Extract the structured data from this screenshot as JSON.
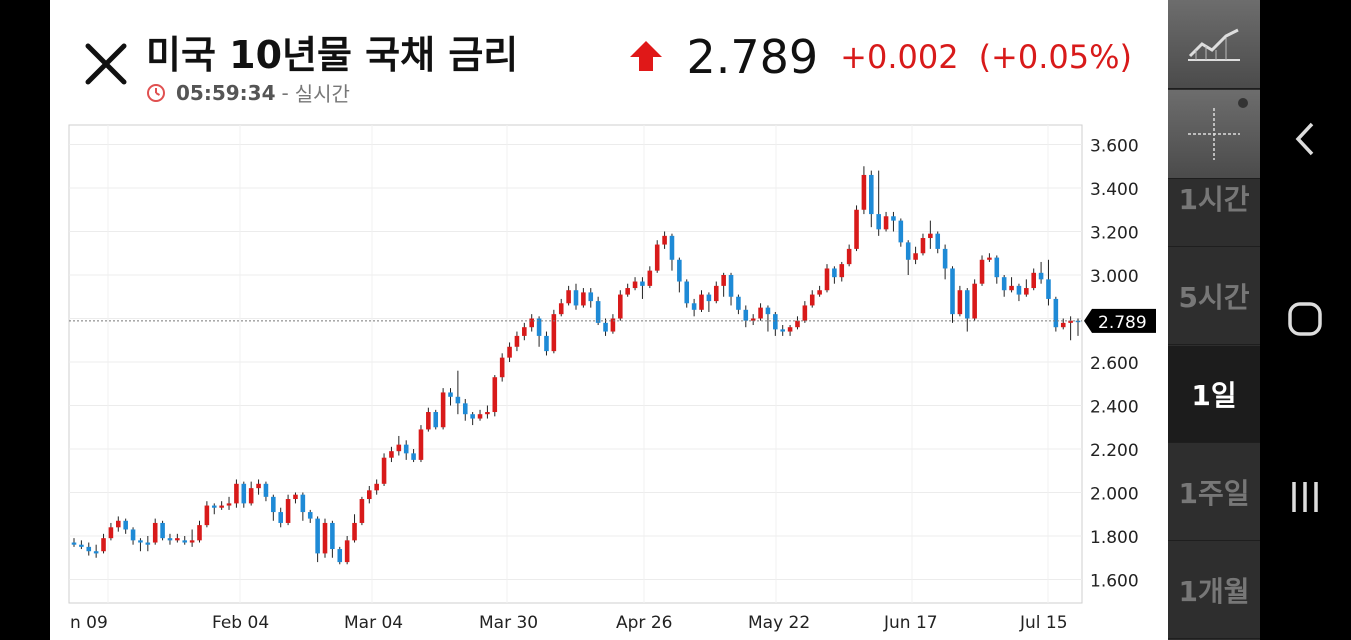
{
  "header": {
    "title": "미국 10년물 국채 금리",
    "time": "05:59:34",
    "separator": "-",
    "realtime_label": "실시간",
    "price": "2.789",
    "change": "+0.002",
    "change_pct": "(+0.05%)",
    "direction": "up"
  },
  "colors": {
    "up": "#d81a1a",
    "down": "#1e8ad6",
    "price_marker_bg": "#000000"
  },
  "chart_data": {
    "type": "candlestick",
    "y_ticks": [
      "3.600",
      "3.400",
      "3.200",
      "3.000",
      "2.800",
      "2.600",
      "2.400",
      "2.200",
      "2.000",
      "1.800",
      "1.600"
    ],
    "y_tick_values": [
      3.6,
      3.4,
      3.2,
      3.0,
      2.8,
      2.6,
      2.4,
      2.2,
      2.0,
      1.8,
      1.6
    ],
    "x_labels": [
      "n 09",
      "Feb 04",
      "Mar 04",
      "Mar 30",
      "Apr 26",
      "May 22",
      "Jun 17",
      "Jul 15"
    ],
    "current_price": 2.789,
    "current_price_label": "2.789",
    "ylim": [
      1.5,
      3.67
    ],
    "candles": [
      [
        1.77,
        1.76,
        1.79,
        1.75
      ],
      [
        1.76,
        1.75,
        1.78,
        1.74
      ],
      [
        1.75,
        1.73,
        1.77,
        1.71
      ],
      [
        1.73,
        1.72,
        1.76,
        1.7
      ],
      [
        1.73,
        1.79,
        1.81,
        1.72
      ],
      [
        1.79,
        1.84,
        1.86,
        1.78
      ],
      [
        1.84,
        1.87,
        1.89,
        1.82
      ],
      [
        1.87,
        1.83,
        1.88,
        1.81
      ],
      [
        1.83,
        1.78,
        1.84,
        1.76
      ],
      [
        1.78,
        1.77,
        1.79,
        1.73
      ],
      [
        1.77,
        1.76,
        1.8,
        1.73
      ],
      [
        1.77,
        1.86,
        1.88,
        1.76
      ],
      [
        1.86,
        1.79,
        1.87,
        1.78
      ],
      [
        1.79,
        1.78,
        1.81,
        1.76
      ],
      [
        1.78,
        1.79,
        1.81,
        1.77
      ],
      [
        1.78,
        1.77,
        1.8,
        1.76
      ],
      [
        1.77,
        1.78,
        1.83,
        1.75
      ],
      [
        1.78,
        1.85,
        1.87,
        1.77
      ],
      [
        1.85,
        1.94,
        1.96,
        1.84
      ],
      [
        1.94,
        1.93,
        1.95,
        1.9
      ],
      [
        1.93,
        1.94,
        1.96,
        1.92
      ],
      [
        1.94,
        1.95,
        1.98,
        1.92
      ],
      [
        1.95,
        2.04,
        2.06,
        1.93
      ],
      [
        2.04,
        1.95,
        2.05,
        1.93
      ],
      [
        1.95,
        2.02,
        2.05,
        1.94
      ],
      [
        2.02,
        2.04,
        2.06,
        1.99
      ],
      [
        2.04,
        1.98,
        2.05,
        1.96
      ],
      [
        1.98,
        1.91,
        1.99,
        1.87
      ],
      [
        1.91,
        1.86,
        1.93,
        1.84
      ],
      [
        1.86,
        1.97,
        1.99,
        1.85
      ],
      [
        1.97,
        1.99,
        2.0,
        1.95
      ],
      [
        1.99,
        1.91,
        2.0,
        1.87
      ],
      [
        1.91,
        1.88,
        1.92,
        1.86
      ],
      [
        1.88,
        1.72,
        1.89,
        1.68
      ],
      [
        1.72,
        1.86,
        1.88,
        1.7
      ],
      [
        1.86,
        1.74,
        1.87,
        1.7
      ],
      [
        1.74,
        1.68,
        1.75,
        1.67
      ],
      [
        1.68,
        1.78,
        1.8,
        1.67
      ],
      [
        1.78,
        1.86,
        1.9,
        1.77
      ],
      [
        1.86,
        1.97,
        1.98,
        1.85
      ],
      [
        1.97,
        2.01,
        2.03,
        1.95
      ],
      [
        2.01,
        2.04,
        2.06,
        1.99
      ],
      [
        2.04,
        2.16,
        2.18,
        2.03
      ],
      [
        2.16,
        2.19,
        2.21,
        2.14
      ],
      [
        2.19,
        2.22,
        2.26,
        2.17
      ],
      [
        2.22,
        2.18,
        2.24,
        2.15
      ],
      [
        2.18,
        2.15,
        2.2,
        2.14
      ],
      [
        2.15,
        2.29,
        2.31,
        2.14
      ],
      [
        2.29,
        2.37,
        2.39,
        2.28
      ],
      [
        2.37,
        2.3,
        2.38,
        2.29
      ],
      [
        2.3,
        2.46,
        2.48,
        2.29
      ],
      [
        2.46,
        2.44,
        2.48,
        2.4
      ],
      [
        2.44,
        2.41,
        2.56,
        2.36
      ],
      [
        2.41,
        2.36,
        2.43,
        2.33
      ],
      [
        2.36,
        2.34,
        2.37,
        2.31
      ],
      [
        2.34,
        2.36,
        2.38,
        2.33
      ],
      [
        2.36,
        2.37,
        2.4,
        2.34
      ],
      [
        2.37,
        2.53,
        2.54,
        2.35
      ],
      [
        2.53,
        2.62,
        2.64,
        2.51
      ],
      [
        2.62,
        2.67,
        2.69,
        2.6
      ],
      [
        2.67,
        2.72,
        2.74,
        2.65
      ],
      [
        2.72,
        2.76,
        2.78,
        2.7
      ],
      [
        2.76,
        2.8,
        2.82,
        2.74
      ],
      [
        2.8,
        2.72,
        2.81,
        2.67
      ],
      [
        2.72,
        2.65,
        2.74,
        2.63
      ],
      [
        2.65,
        2.82,
        2.84,
        2.64
      ],
      [
        2.82,
        2.87,
        2.89,
        2.81
      ],
      [
        2.87,
        2.93,
        2.95,
        2.86
      ],
      [
        2.93,
        2.86,
        2.96,
        2.84
      ],
      [
        2.86,
        2.92,
        2.94,
        2.85
      ],
      [
        2.92,
        2.88,
        2.94,
        2.85
      ],
      [
        2.88,
        2.78,
        2.9,
        2.77
      ],
      [
        2.78,
        2.74,
        2.8,
        2.72
      ],
      [
        2.74,
        2.8,
        2.82,
        2.73
      ],
      [
        2.8,
        2.91,
        2.93,
        2.79
      ],
      [
        2.91,
        2.94,
        2.96,
        2.9
      ],
      [
        2.94,
        2.97,
        2.99,
        2.93
      ],
      [
        2.97,
        2.95,
        2.99,
        2.89
      ],
      [
        2.95,
        3.02,
        3.04,
        2.94
      ],
      [
        3.02,
        3.14,
        3.16,
        3.01
      ],
      [
        3.14,
        3.18,
        3.2,
        3.12
      ],
      [
        3.18,
        3.07,
        3.19,
        3.02
      ],
      [
        3.07,
        2.97,
        3.08,
        2.92
      ],
      [
        2.97,
        2.87,
        2.98,
        2.85
      ],
      [
        2.87,
        2.84,
        2.89,
        2.81
      ],
      [
        2.84,
        2.91,
        2.93,
        2.83
      ],
      [
        2.91,
        2.88,
        2.92,
        2.83
      ],
      [
        2.88,
        2.95,
        2.97,
        2.87
      ],
      [
        2.95,
        3.0,
        3.01,
        2.9
      ],
      [
        3.0,
        2.9,
        3.01,
        2.86
      ],
      [
        2.9,
        2.84,
        2.91,
        2.82
      ],
      [
        2.84,
        2.79,
        2.86,
        2.76
      ],
      [
        2.79,
        2.8,
        2.82,
        2.77
      ],
      [
        2.8,
        2.85,
        2.87,
        2.79
      ],
      [
        2.85,
        2.82,
        2.86,
        2.74
      ],
      [
        2.82,
        2.75,
        2.83,
        2.72
      ],
      [
        2.75,
        2.74,
        2.77,
        2.72
      ],
      [
        2.74,
        2.76,
        2.77,
        2.72
      ],
      [
        2.76,
        2.79,
        2.81,
        2.75
      ],
      [
        2.79,
        2.86,
        2.88,
        2.78
      ],
      [
        2.86,
        2.91,
        2.93,
        2.85
      ],
      [
        2.91,
        2.93,
        2.95,
        2.9
      ],
      [
        2.93,
        3.03,
        3.05,
        2.92
      ],
      [
        3.03,
        2.99,
        3.04,
        2.96
      ],
      [
        2.99,
        3.05,
        3.06,
        2.97
      ],
      [
        3.05,
        3.12,
        3.14,
        3.04
      ],
      [
        3.12,
        3.3,
        3.32,
        3.11
      ],
      [
        3.3,
        3.46,
        3.5,
        3.28
      ],
      [
        3.46,
        3.28,
        3.48,
        3.22
      ],
      [
        3.28,
        3.21,
        3.48,
        3.18
      ],
      [
        3.21,
        3.27,
        3.29,
        3.2
      ],
      [
        3.27,
        3.25,
        3.29,
        3.2
      ],
      [
        3.25,
        3.15,
        3.26,
        3.13
      ],
      [
        3.15,
        3.07,
        3.16,
        3.0
      ],
      [
        3.07,
        3.1,
        3.13,
        3.05
      ],
      [
        3.1,
        3.17,
        3.19,
        3.09
      ],
      [
        3.17,
        3.19,
        3.25,
        3.12
      ],
      [
        3.19,
        3.12,
        3.2,
        3.1
      ],
      [
        3.12,
        3.03,
        3.14,
        2.98
      ],
      [
        3.03,
        2.82,
        3.04,
        2.78
      ],
      [
        2.82,
        2.93,
        2.95,
        2.81
      ],
      [
        2.93,
        2.8,
        2.94,
        2.74
      ],
      [
        2.8,
        2.96,
        2.98,
        2.79
      ],
      [
        2.96,
        3.07,
        3.09,
        2.95
      ],
      [
        3.07,
        3.08,
        3.1,
        3.06
      ],
      [
        3.08,
        2.99,
        3.09,
        2.96
      ],
      [
        2.99,
        2.93,
        3.0,
        2.9
      ],
      [
        2.93,
        2.95,
        2.99,
        2.92
      ],
      [
        2.95,
        2.91,
        2.96,
        2.88
      ],
      [
        2.91,
        2.94,
        2.98,
        2.9
      ],
      [
        2.94,
        3.01,
        3.03,
        2.93
      ],
      [
        3.01,
        2.98,
        3.06,
        2.96
      ],
      [
        2.98,
        2.89,
        3.07,
        2.86
      ],
      [
        2.89,
        2.76,
        2.9,
        2.74
      ],
      [
        2.76,
        2.78,
        2.8,
        2.75
      ],
      [
        2.78,
        2.79,
        2.81,
        2.7
      ],
      [
        2.79,
        2.789,
        2.8,
        2.72
      ]
    ]
  },
  "timeframes": [
    "1시간",
    "5시간",
    "1일",
    "1주일",
    "1개월"
  ],
  "active_timeframe": "1일"
}
